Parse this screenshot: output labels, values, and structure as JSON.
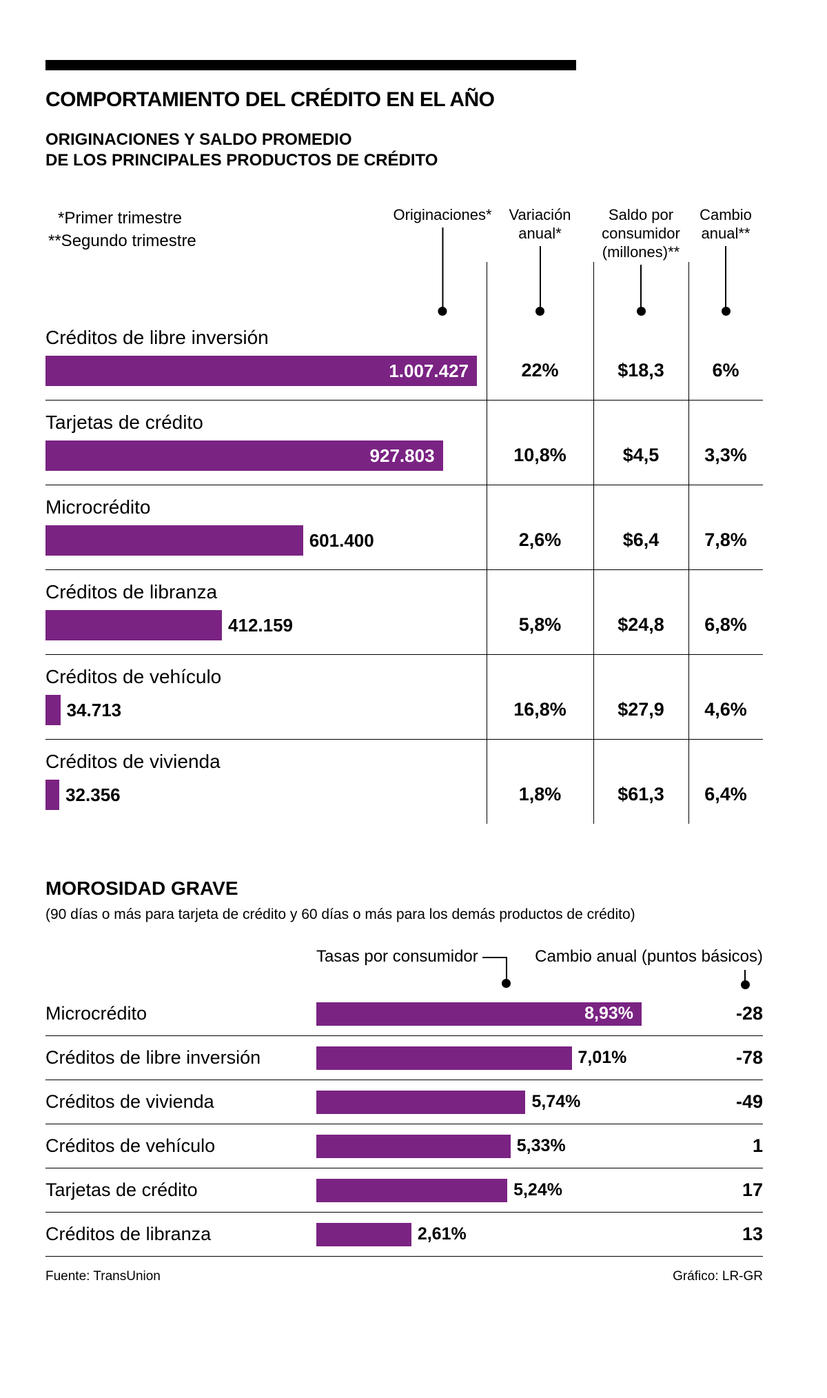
{
  "colors": {
    "bar": "#7a2383",
    "rule": "#000000",
    "background": "#ffffff"
  },
  "header": {
    "title": "COMPORTAMIENTO DEL CRÉDITO EN EL AÑO",
    "subtitle_line1": "ORIGINACIONES Y SALDO PROMEDIO",
    "subtitle_line2": "DE LOS PRINCIPALES PRODUCTOS DE CRÉDITO"
  },
  "section1": {
    "footnote1": "*Primer trimestre",
    "footnote2": "**Segundo trimestre",
    "col_headers": {
      "originaciones": "Originaciones*",
      "variacion": "Variación anual*",
      "saldo": "Saldo por consumidor (millones)**",
      "cambio": "Cambio anual**"
    },
    "rows": [
      {
        "label": "Créditos de libre inversión",
        "value_label": "1.007.427",
        "bar_pct": 100,
        "variacion": "22%",
        "saldo": "$18,3",
        "cambio": "6%"
      },
      {
        "label": "Tarjetas de crédito",
        "value_label": "927.803",
        "bar_pct": 92.1,
        "variacion": "10,8%",
        "saldo": "$4,5",
        "cambio": "3,3%"
      },
      {
        "label": "Microcrédito",
        "value_label": "601.400",
        "bar_pct": 59.7,
        "variacion": "2,6%",
        "saldo": "$6,4",
        "cambio": "7,8%"
      },
      {
        "label": "Créditos de libranza",
        "value_label": "412.159",
        "bar_pct": 40.9,
        "variacion": "5,8%",
        "saldo": "$24,8",
        "cambio": "6,8%"
      },
      {
        "label": "Créditos de vehículo",
        "value_label": "34.713",
        "bar_pct": 3.45,
        "variacion": "16,8%",
        "saldo": "$27,9",
        "cambio": "4,6%"
      },
      {
        "label": "Créditos de vivienda",
        "value_label": "32.356",
        "bar_pct": 3.21,
        "variacion": "1,8%",
        "saldo": "$61,3",
        "cambio": "6,4%"
      }
    ]
  },
  "section2": {
    "title": "MOROSIDAD GRAVE",
    "note": "(90 días o más para tarjeta de crédito y 60 días o más para los demás productos de crédito)",
    "col_headers": {
      "tasas": "Tasas por consumidor",
      "cambio": "Cambio anual (puntos básicos)"
    },
    "rows": [
      {
        "label": "Microcrédito",
        "tasa": "8,93%",
        "bar_pct": 100,
        "cambio": "-28"
      },
      {
        "label": "Créditos de libre inversión",
        "tasa": "7,01%",
        "bar_pct": 78.5,
        "cambio": "-78"
      },
      {
        "label": "Créditos de vivienda",
        "tasa": "5,74%",
        "bar_pct": 64.3,
        "cambio": "-49"
      },
      {
        "label": "Créditos de vehículo",
        "tasa": "5,33%",
        "bar_pct": 59.7,
        "cambio": "1"
      },
      {
        "label": "Tarjetas de crédito",
        "tasa": "5,24%",
        "bar_pct": 58.7,
        "cambio": "17"
      },
      {
        "label": "Créditos de libranza",
        "tasa": "2,61%",
        "bar_pct": 29.2,
        "cambio": "13"
      }
    ]
  },
  "footer": {
    "source": "Fuente: TransUnion",
    "credit": "Gráfico: LR-GR"
  },
  "chart_data": [
    {
      "type": "bar",
      "orientation": "horizontal",
      "title": "ORIGINACIONES Y SALDO PROMEDIO DE LOS PRINCIPALES PRODUCTOS DE CRÉDITO",
      "categories": [
        "Créditos de libre inversión",
        "Tarjetas de crédito",
        "Microcrédito",
        "Créditos de libranza",
        "Créditos de vehículo",
        "Créditos de vivienda"
      ],
      "series": [
        {
          "name": "Originaciones*",
          "values": [
            1007427,
            927803,
            601400,
            412159,
            34713,
            32356
          ]
        },
        {
          "name": "Variación anual* (%)",
          "values": [
            22,
            10.8,
            2.6,
            5.8,
            16.8,
            1.8
          ]
        },
        {
          "name": "Saldo por consumidor (millones)** ($)",
          "values": [
            18.3,
            4.5,
            6.4,
            24.8,
            27.9,
            61.3
          ]
        },
        {
          "name": "Cambio anual** (%)",
          "values": [
            6,
            3.3,
            7.8,
            6.8,
            4.6,
            6.4
          ]
        }
      ],
      "xlim": [
        0,
        1007427
      ],
      "grid": false,
      "bar_color": "#7a2383",
      "footnotes": [
        "*Primer trimestre",
        "**Segundo trimestre"
      ]
    },
    {
      "type": "bar",
      "orientation": "horizontal",
      "title": "MOROSIDAD GRAVE",
      "subtitle": "(90 días o más para tarjeta de crédito y 60 días o más para los demás productos de crédito)",
      "categories": [
        "Microcrédito",
        "Créditos de libre inversión",
        "Créditos de vivienda",
        "Créditos de vehículo",
        "Tarjetas de crédito",
        "Créditos de libranza"
      ],
      "series": [
        {
          "name": "Tasas por consumidor (%)",
          "values": [
            8.93,
            7.01,
            5.74,
            5.33,
            5.24,
            2.61
          ]
        },
        {
          "name": "Cambio anual (puntos básicos)",
          "values": [
            -28,
            -78,
            -49,
            1,
            17,
            13
          ]
        }
      ],
      "xlim": [
        0,
        8.93
      ],
      "grid": false,
      "bar_color": "#7a2383"
    }
  ]
}
